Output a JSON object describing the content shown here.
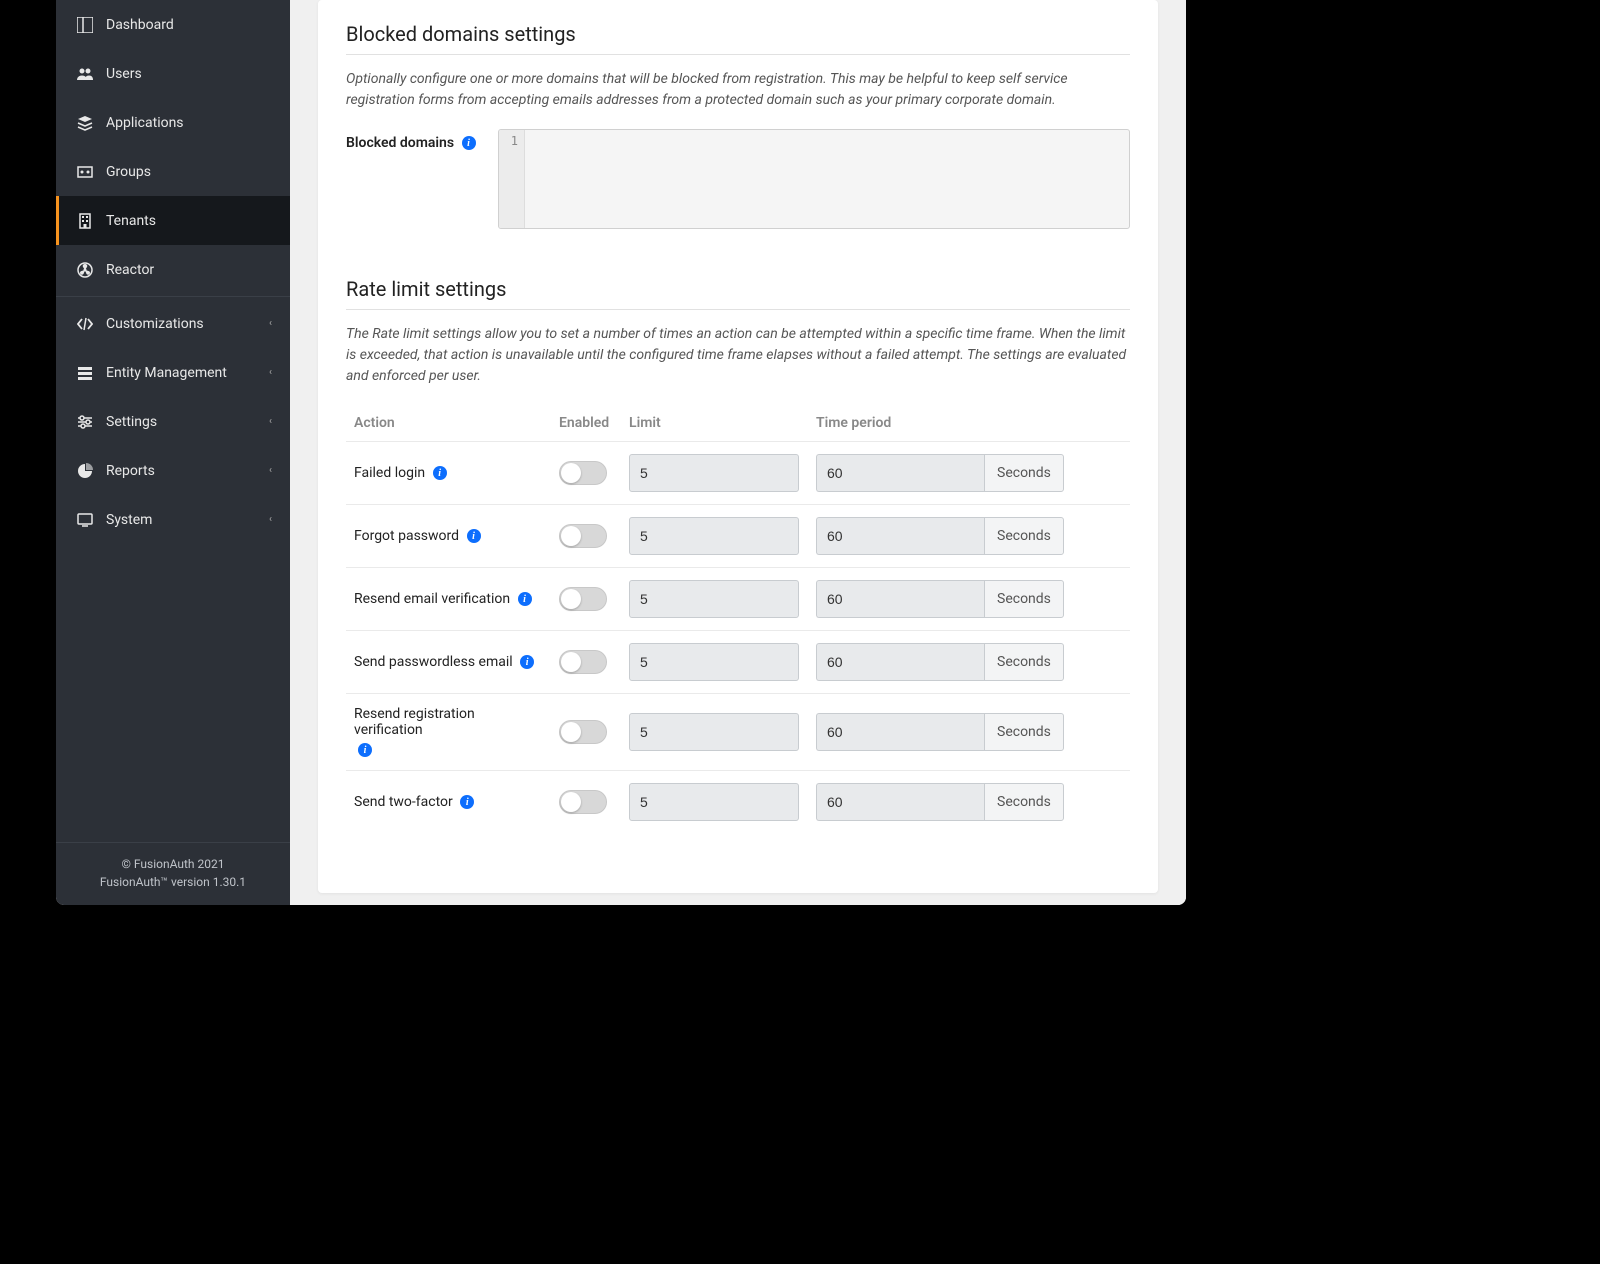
{
  "sidebar": {
    "items": [
      {
        "label": "Dashboard",
        "icon": "dashboard",
        "hasChildren": false
      },
      {
        "label": "Users",
        "icon": "users",
        "hasChildren": false
      },
      {
        "label": "Applications",
        "icon": "applications",
        "hasChildren": false
      },
      {
        "label": "Groups",
        "icon": "groups",
        "hasChildren": false
      },
      {
        "label": "Tenants",
        "icon": "tenants",
        "hasChildren": false,
        "active": true
      },
      {
        "label": "Reactor",
        "icon": "reactor",
        "hasChildren": false
      }
    ],
    "items2": [
      {
        "label": "Customizations",
        "icon": "code",
        "hasChildren": true
      },
      {
        "label": "Entity Management",
        "icon": "entity",
        "hasChildren": true
      },
      {
        "label": "Settings",
        "icon": "settings",
        "hasChildren": true
      },
      {
        "label": "Reports",
        "icon": "reports",
        "hasChildren": true
      },
      {
        "label": "System",
        "icon": "system",
        "hasChildren": true
      }
    ],
    "footer_line1": "© FusionAuth 2021",
    "footer_line2": "FusionAuth™ version 1.30.1"
  },
  "blocked": {
    "title": "Blocked domains settings",
    "desc": "Optionally configure one or more domains that will be blocked from registration. This may be helpful to keep self service registration forms from accepting emails addresses from a protected domain such as your primary corporate domain.",
    "label": "Blocked domains",
    "gutter_line": "1"
  },
  "rate": {
    "title": "Rate limit settings",
    "desc": "The Rate limit settings allow you to set a number of times an action can be attempted within a specific time frame. When the limit is exceeded, that action is unavailable until the configured time frame elapses without a failed attempt. The settings are evaluated and enforced per user.",
    "headers": {
      "action": "Action",
      "enabled": "Enabled",
      "limit": "Limit",
      "period": "Time period"
    },
    "unit": "Seconds",
    "rows": [
      {
        "action": "Failed login",
        "limit": "5",
        "period": "60"
      },
      {
        "action": "Forgot password",
        "limit": "5",
        "period": "60"
      },
      {
        "action": "Resend email verification",
        "limit": "5",
        "period": "60"
      },
      {
        "action": "Send passwordless email",
        "limit": "5",
        "period": "60"
      },
      {
        "action": "Resend registration verification",
        "limit": "5",
        "period": "60",
        "infoBelow": true
      },
      {
        "action": "Send two-factor",
        "limit": "5",
        "period": "60"
      }
    ]
  },
  "colors": {
    "sidebar_bg": "#2c3037",
    "sidebar_active_bg": "#15181c",
    "accent": "#f7931e",
    "info": "#0d6efd",
    "card_bg": "#ffffff",
    "main_bg": "#f0f0f0",
    "input_bg": "#e8eaec",
    "toggle_bg": "#d8d8d8"
  }
}
